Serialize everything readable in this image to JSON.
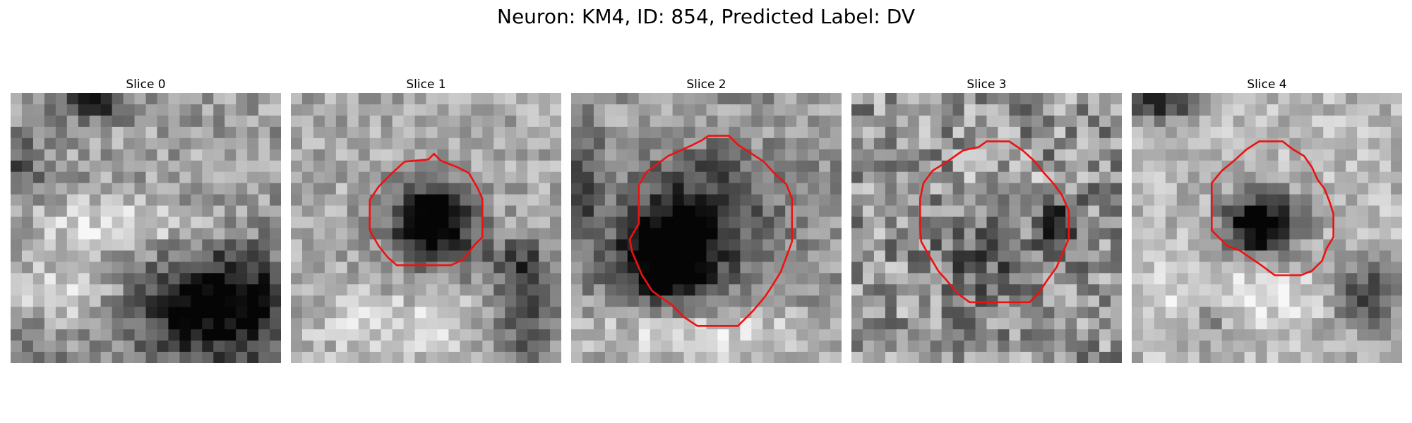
{
  "figure": {
    "title": "Neuron: KM4, ID: 854, Predicted Label: DV"
  },
  "contour_color": "#ee1111",
  "panels": [
    {
      "title": "Slice 0",
      "has_contour": false
    },
    {
      "title": "Slice 1",
      "has_contour": true
    },
    {
      "title": "Slice 2",
      "has_contour": true
    },
    {
      "title": "Slice 3",
      "has_contour": true
    },
    {
      "title": "Slice 4",
      "has_contour": true
    }
  ]
}
